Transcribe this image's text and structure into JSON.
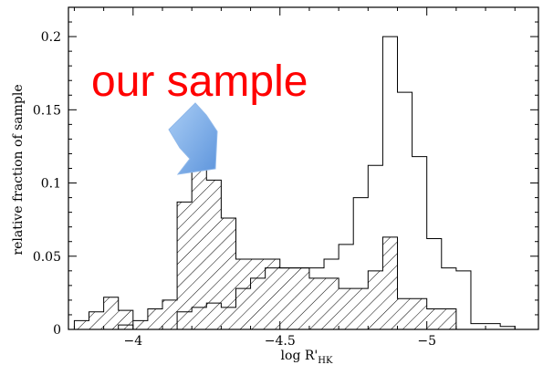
{
  "chart_data": {
    "type": "histogram",
    "xlabel": "log R'",
    "xlabel_subscript": "HK",
    "ylabel": "relative fraction of sample",
    "xlim": [
      -3.78,
      -5.38
    ],
    "ylim": [
      0,
      0.22
    ],
    "x_axis_direction": "reversed",
    "x_ticks": [
      {
        "value": -4,
        "label": "−4"
      },
      {
        "value": -4.5,
        "label": "−4.5"
      },
      {
        "value": -5,
        "label": "−5"
      }
    ],
    "y_ticks": [
      {
        "value": 0,
        "label": "0"
      },
      {
        "value": 0.05,
        "label": "0.05"
      },
      {
        "value": 0.1,
        "label": "0.1"
      },
      {
        "value": 0.15,
        "label": "0.15"
      },
      {
        "value": 0.2,
        "label": "0.2"
      }
    ],
    "bin_width": 0.05,
    "series": [
      {
        "style": "hatched",
        "bins": [
          {
            "x0": -3.8,
            "value": 0.006
          },
          {
            "x0": -3.85,
            "value": 0.012
          },
          {
            "x0": -3.9,
            "value": 0.022
          },
          {
            "x0": -3.95,
            "value": 0.013
          },
          {
            "x0": -4.0,
            "value": 0.006
          },
          {
            "x0": -4.05,
            "value": 0.014
          },
          {
            "x0": -4.1,
            "value": 0.02
          },
          {
            "x0": -4.15,
            "value": 0.087
          },
          {
            "x0": -4.2,
            "value": 0.13
          },
          {
            "x0": -4.25,
            "value": 0.102
          },
          {
            "x0": -4.3,
            "value": 0.076
          },
          {
            "x0": -4.35,
            "value": 0.048
          },
          {
            "x0": -4.4,
            "value": 0.048
          },
          {
            "x0": -4.45,
            "value": 0.048
          },
          {
            "x0": -4.5,
            "value": 0.042
          },
          {
            "x0": -4.55,
            "value": 0.042
          },
          {
            "x0": -4.6,
            "value": 0.035
          },
          {
            "x0": -4.65,
            "value": 0.035
          },
          {
            "x0": -4.7,
            "value": 0.028
          },
          {
            "x0": -4.75,
            "value": 0.028
          },
          {
            "x0": -4.8,
            "value": 0.04
          },
          {
            "x0": -4.85,
            "value": 0.063
          },
          {
            "x0": -4.9,
            "value": 0.021
          },
          {
            "x0": -4.95,
            "value": 0.021
          },
          {
            "x0": -5.0,
            "value": 0.014
          },
          {
            "x0": -5.05,
            "value": 0.014
          }
        ]
      },
      {
        "style": "open",
        "bins": [
          {
            "x0": -3.8,
            "value": 0.0
          },
          {
            "x0": -3.85,
            "value": 0.0
          },
          {
            "x0": -3.9,
            "value": 0.0
          },
          {
            "x0": -3.95,
            "value": 0.003
          },
          {
            "x0": -4.0,
            "value": 0.0
          },
          {
            "x0": -4.05,
            "value": 0.0
          },
          {
            "x0": -4.1,
            "value": 0.0
          },
          {
            "x0": -4.15,
            "value": 0.012
          },
          {
            "x0": -4.2,
            "value": 0.015
          },
          {
            "x0": -4.25,
            "value": 0.018
          },
          {
            "x0": -4.3,
            "value": 0.015
          },
          {
            "x0": -4.35,
            "value": 0.028
          },
          {
            "x0": -4.4,
            "value": 0.035
          },
          {
            "x0": -4.45,
            "value": 0.042
          },
          {
            "x0": -4.5,
            "value": 0.042
          },
          {
            "x0": -4.55,
            "value": 0.042
          },
          {
            "x0": -4.6,
            "value": 0.042
          },
          {
            "x0": -4.65,
            "value": 0.048
          },
          {
            "x0": -4.7,
            "value": 0.058
          },
          {
            "x0": -4.75,
            "value": 0.09
          },
          {
            "x0": -4.8,
            "value": 0.112
          },
          {
            "x0": -4.85,
            "value": 0.2
          },
          {
            "x0": -4.9,
            "value": 0.162
          },
          {
            "x0": -4.95,
            "value": 0.118
          },
          {
            "x0": -5.0,
            "value": 0.062
          },
          {
            "x0": -5.05,
            "value": 0.042
          },
          {
            "x0": -5.1,
            "value": 0.04
          },
          {
            "x0": -5.15,
            "value": 0.004
          },
          {
            "x0": -5.2,
            "value": 0.004
          },
          {
            "x0": -5.25,
            "value": 0.002
          }
        ]
      }
    ],
    "annotations": [
      {
        "text": "our sample",
        "color": "#ff0000"
      }
    ],
    "arrow_color": "#7eaee6",
    "bar_color": "#000000"
  }
}
